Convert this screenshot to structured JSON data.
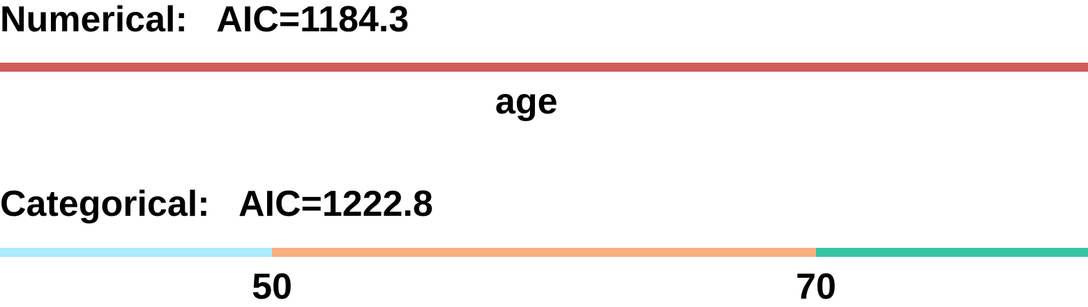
{
  "numerical": {
    "label": "Numerical:",
    "aic": "AIC=1184.3",
    "color": "#d25c5c",
    "variable": "age"
  },
  "categorical": {
    "label": "Categorical:",
    "aic": "AIC=1222.8",
    "range": [
      40,
      80
    ],
    "cutpoints": [
      50,
      70
    ],
    "tick_labels": [
      "50",
      "70"
    ],
    "segment_colors": [
      "#a9ecfb",
      "#f8b07f",
      "#37c3a4"
    ]
  }
}
